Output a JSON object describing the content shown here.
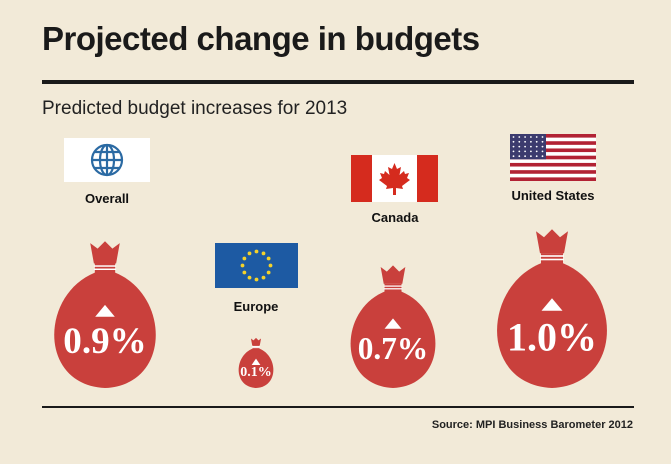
{
  "header": {
    "title": "Projected change in budgets",
    "subtitle": "Predicted budget increases for 2013"
  },
  "footer": {
    "source": "Source: MPI Business Barometer 2012"
  },
  "colors": {
    "background": "#f2ead8",
    "bag": "#c9403c",
    "bag_stripe": "#ffffff",
    "globe": "#2b6aa3",
    "eu_blue": "#1d5aa3",
    "eu_star": "#f5d22a",
    "canada_red": "#d52b1e",
    "us_red": "#b22234",
    "us_blue": "#3c3b6e"
  },
  "chart_data": {
    "type": "bar",
    "title": "Projected change in budgets",
    "subtitle": "Predicted budget increases for 2013",
    "categories": [
      "Overall",
      "Europe",
      "Canada",
      "United States"
    ],
    "values": [
      0.9,
      0.1,
      0.7,
      1.0
    ],
    "value_labels": [
      "0.9%",
      "0.1%",
      "0.7%",
      "1.0%"
    ],
    "unit": "%",
    "icons": [
      "globe-icon",
      "eu-flag-icon",
      "canada-flag-icon",
      "us-flag-icon"
    ],
    "direction": "increase",
    "grid": false
  }
}
